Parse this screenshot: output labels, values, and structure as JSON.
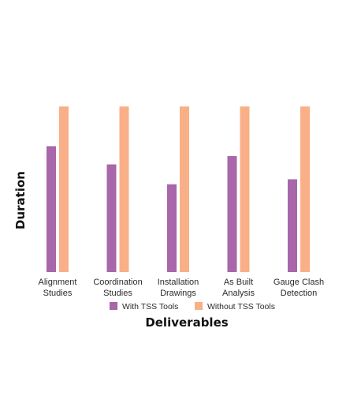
{
  "chart_data": {
    "type": "bar",
    "title": "",
    "xlabel": "Deliverables",
    "ylabel": "Duration",
    "categories": [
      [
        "Alignment",
        "Studies"
      ],
      [
        "Coordination",
        "Studies"
      ],
      [
        "Installation",
        "Drawings"
      ],
      [
        "As Built",
        "Analysis"
      ],
      [
        "Gauge Clash",
        "Detection"
      ]
    ],
    "series": [
      {
        "name": "With TSS Tools",
        "color": "#a866ab",
        "values": [
          76,
          65,
          53,
          70,
          56
        ]
      },
      {
        "name": "Without TSS Tools",
        "color": "#f9af87",
        "values": [
          100,
          100,
          100,
          100,
          100
        ]
      }
    ],
    "ylim": [
      0,
      100
    ],
    "grid": false,
    "y_ticks_shown": false,
    "legend_position": "bottom"
  }
}
